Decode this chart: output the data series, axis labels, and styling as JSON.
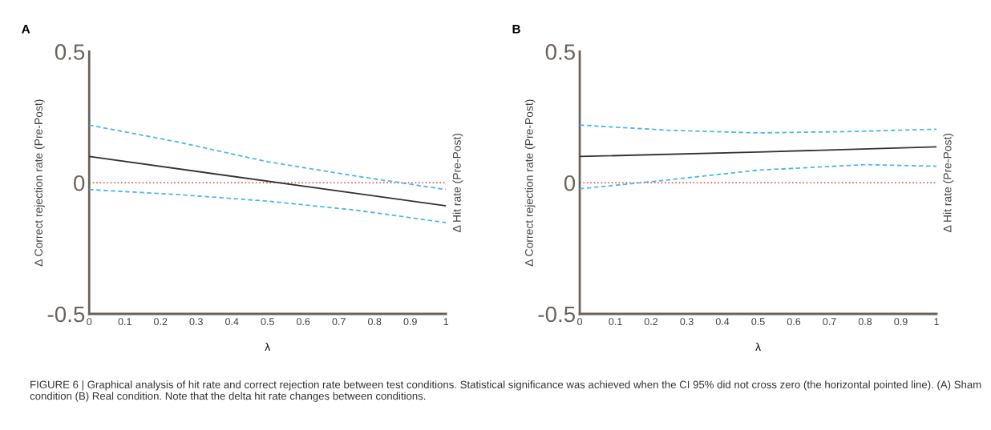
{
  "chart_data": [
    {
      "type": "line",
      "title": "A",
      "xlabel": "λ",
      "ylabel": "Δ Correct rejection rate (Pre-Post)",
      "y2label": "Δ Hit rate (Pre-Post)",
      "xlim": [
        0,
        1
      ],
      "xticks": [
        0,
        0.1,
        0.2,
        0.3,
        0.4,
        0.5,
        0.6,
        0.7,
        0.8,
        0.9,
        1
      ],
      "ylim": [
        -0.5,
        0.5
      ],
      "yticks": [
        -0.5,
        0,
        0.5
      ],
      "grid": false,
      "legend": false,
      "series": [
        {
          "color": "#4db8e8",
          "line_style": "dashed",
          "x": [
            0,
            0.25,
            0.5,
            0.75,
            1
          ],
          "values": [
            0.22,
            0.155,
            0.08,
            0.025,
            -0.026
          ]
        },
        {
          "color": "#4db8e8",
          "line_style": "dashed",
          "x": [
            0,
            0.25,
            0.5,
            0.75,
            1
          ],
          "values": [
            -0.026,
            -0.045,
            -0.07,
            -0.105,
            -0.152
          ]
        },
        {
          "color": "#333333",
          "line_style": "solid",
          "x": [
            0,
            1
          ],
          "values": [
            0.1,
            -0.088
          ]
        }
      ],
      "ref_lines": [
        {
          "axis": "y",
          "value": 0,
          "label": null,
          "color": "#e84040",
          "line_style": "dotted"
        }
      ],
      "annotations": [
        "FIGURE 6 | Graphical analysis of hit rate and correct rejection rate between test conditions. Statistical significance was achieved when the CI 95% did not cross zero (the horizontal pointed line). (A) Sham condition (B) Real condition. Note that the delta hit rate changes between conditions."
      ]
    },
    {
      "type": "line",
      "title": "B",
      "xlabel": "λ",
      "ylabel": "Δ Correct rejection rate (Pre-Post)",
      "y2label": "Δ Hit rate (Pre-Post)",
      "xlim": [
        0,
        1
      ],
      "xticks": [
        0,
        0.1,
        0.2,
        0.3,
        0.4,
        0.5,
        0.6,
        0.7,
        0.8,
        0.9,
        1
      ],
      "ylim": [
        -0.5,
        0.5
      ],
      "yticks": [
        -0.5,
        0,
        0.5
      ],
      "grid": false,
      "legend": false,
      "series": [
        {
          "color": "#4db8e8",
          "line_style": "dashed",
          "x": [
            0,
            0.25,
            0.5,
            0.75,
            1
          ],
          "values": [
            0.22,
            0.2,
            0.19,
            0.195,
            0.204
          ]
        },
        {
          "color": "#4db8e8",
          "line_style": "dashed",
          "x": [
            0,
            0.2,
            0.5,
            0.8,
            1
          ],
          "values": [
            -0.023,
            0.004,
            0.048,
            0.069,
            0.063
          ]
        },
        {
          "color": "#333333",
          "line_style": "solid",
          "x": [
            0,
            0.5,
            1
          ],
          "values": [
            0.1,
            0.117,
            0.137
          ]
        }
      ],
      "ref_lines": [
        {
          "axis": "y",
          "value": 0,
          "label": null,
          "color": "#e84040",
          "line_style": "dotted"
        }
      ]
    }
  ]
}
